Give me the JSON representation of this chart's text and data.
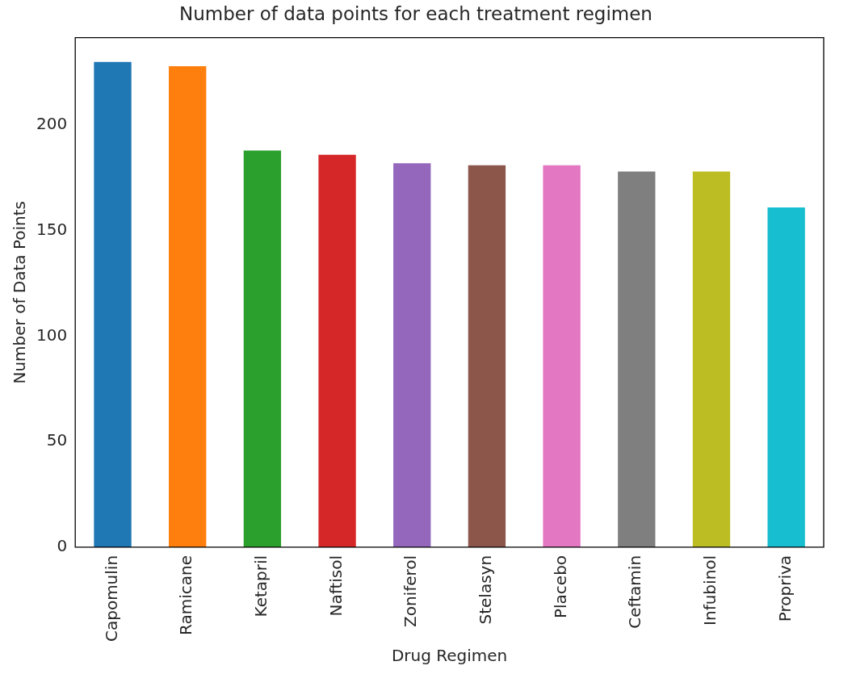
{
  "chart_data": {
    "type": "bar",
    "title": "Number of data points for each treatment regimen",
    "xlabel": "Drug Regimen",
    "ylabel": "Number of Data Points",
    "categories": [
      "Capomulin",
      "Ramicane",
      "Ketapril",
      "Naftisol",
      "Zoniferol",
      "Stelasyn",
      "Placebo",
      "Ceftamin",
      "Infubinol",
      "Propriva"
    ],
    "values": [
      230,
      228,
      188,
      186,
      182,
      181,
      181,
      178,
      178,
      161
    ],
    "colors": [
      "#1f77b4",
      "#ff7f0e",
      "#2ca02c",
      "#d62728",
      "#9467bd",
      "#8c564b",
      "#e377c2",
      "#7f7f7f",
      "#bcbd22",
      "#17becf"
    ],
    "ylim": [
      0,
      241.5
    ],
    "yticks": [
      0,
      50,
      100,
      150,
      200
    ],
    "grid": false,
    "legend": false
  }
}
